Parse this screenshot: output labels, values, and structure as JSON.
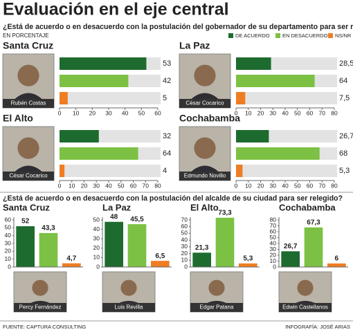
{
  "header": {
    "title": "Evaluación en el eje central",
    "question": "¿Está de acuerdo o en desacuerdo con la postulación del gobernador de su departamento para ser relegido?",
    "unit": "EN PORCENTAJE"
  },
  "legend": [
    {
      "name": "DE ACUERDO",
      "color": "#1d6b2f"
    },
    {
      "name": "EN DESACUERDO",
      "color": "#7cc143"
    },
    {
      "name": "NS/NR",
      "color": "#ef7d22"
    }
  ],
  "question2": "¿Está de acuerdo o en desacuerdo con la postulación del alcalde de su ciudad para ser relegido?",
  "chart_data": [
    {
      "type": "bar",
      "orientation": "horizontal",
      "title": "Santa Cruz",
      "person": "Rubén Costas",
      "values": [
        53,
        42,
        5
      ],
      "value_labels": [
        "53",
        "42",
        "5"
      ],
      "xlim": [
        0,
        60
      ],
      "xticks": [
        0,
        10,
        20,
        30,
        40,
        50,
        60
      ]
    },
    {
      "type": "bar",
      "orientation": "horizontal",
      "title": "La Paz",
      "person": "César Cocarico",
      "values": [
        28.5,
        64,
        7.5
      ],
      "value_labels": [
        "28,5",
        "64",
        "7,5"
      ],
      "xlim": [
        0,
        80
      ],
      "xticks": [
        0,
        10,
        20,
        30,
        40,
        50,
        60,
        70,
        80
      ]
    },
    {
      "type": "bar",
      "orientation": "horizontal",
      "title": "El Alto",
      "person": "César Cocarico",
      "values": [
        32,
        64,
        4
      ],
      "value_labels": [
        "32",
        "64",
        "4"
      ],
      "xlim": [
        0,
        80
      ],
      "xticks": [
        0,
        10,
        20,
        30,
        40,
        50,
        60,
        70,
        80
      ]
    },
    {
      "type": "bar",
      "orientation": "horizontal",
      "title": "Cochabamba",
      "person": "Edmundo Novillo",
      "values": [
        26.7,
        68,
        5.3
      ],
      "value_labels": [
        "26,7",
        "68",
        "5,3"
      ],
      "xlim": [
        0,
        80
      ],
      "xticks": [
        0,
        10,
        20,
        30,
        40,
        50,
        60,
        70,
        80
      ]
    },
    {
      "type": "bar",
      "orientation": "vertical",
      "title": "Santa Cruz",
      "person": "Percy Fernández",
      "values": [
        52,
        43.3,
        4.7
      ],
      "value_labels": [
        "52",
        "43,3",
        "4,7"
      ],
      "ylim": [
        0,
        60
      ],
      "yticks": [
        0,
        10,
        20,
        30,
        40,
        50,
        60
      ]
    },
    {
      "type": "bar",
      "orientation": "vertical",
      "title": "La Paz",
      "person": "Luis Revilla",
      "values": [
        48,
        45.5,
        6.5
      ],
      "value_labels": [
        "48",
        "45,5",
        "6,5"
      ],
      "ylim": [
        0,
        50
      ],
      "yticks": [
        0,
        10,
        20,
        30,
        40,
        50
      ]
    },
    {
      "type": "bar",
      "orientation": "vertical",
      "title": "El Alto",
      "person": "Edgar Patana",
      "values": [
        21.3,
        73.3,
        5.3
      ],
      "value_labels": [
        "21,3",
        "73,3",
        "5,3"
      ],
      "ylim": [
        0,
        70
      ],
      "yticks": [
        0,
        10,
        20,
        30,
        40,
        50,
        60,
        70
      ]
    },
    {
      "type": "bar",
      "orientation": "vertical",
      "title": "Cochabamba",
      "person": "Edwin Castellanos",
      "values": [
        26.7,
        67.3,
        6
      ],
      "value_labels": [
        "26,7",
        "67,3",
        "6"
      ],
      "ylim": [
        0,
        80
      ],
      "yticks": [
        0,
        10,
        20,
        30,
        40,
        50,
        60,
        70,
        80
      ]
    }
  ],
  "footer": {
    "source": "FUENTE: CAPTURA CONSULTING",
    "credit": "INFOGRAFÍA: JOSÉ ARIAS"
  }
}
